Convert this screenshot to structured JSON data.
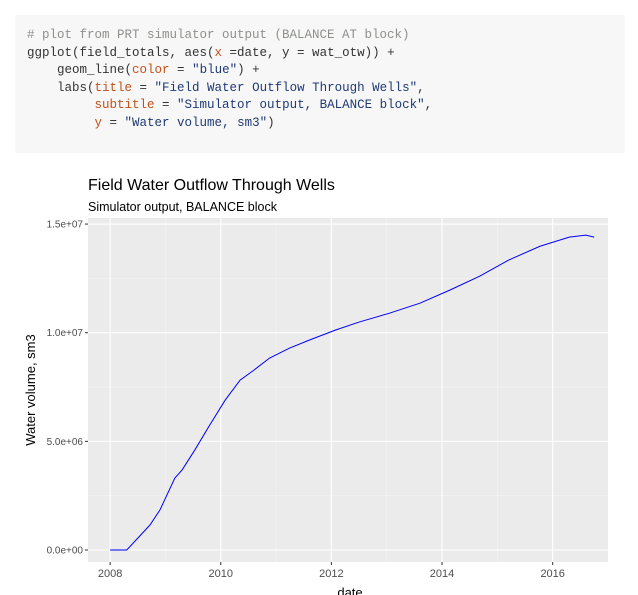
{
  "code": {
    "lines": [
      [
        {
          "text": "# plot from PRT simulator output (BALANCE AT block)",
          "color": "#8e908c"
        }
      ],
      [
        {
          "text": "ggplot(field_totals, aes(",
          "color": "#333333"
        },
        {
          "text": "x",
          "color": "#c4501a"
        },
        {
          "text": " =date, y = wat_otw)) +",
          "color": "#333333"
        }
      ],
      [
        {
          "text": "    geom_line(",
          "color": "#333333"
        },
        {
          "text": "color",
          "color": "#c4501a"
        },
        {
          "text": " = ",
          "color": "#333333"
        },
        {
          "text": "\"blue\"",
          "color": "#1f3a75"
        },
        {
          "text": ") +",
          "color": "#333333"
        }
      ],
      [
        {
          "text": "    labs(",
          "color": "#333333"
        },
        {
          "text": "title",
          "color": "#c4501a"
        },
        {
          "text": " = ",
          "color": "#333333"
        },
        {
          "text": "\"Field Water Outflow Through Wells\"",
          "color": "#1f3a75"
        },
        {
          "text": ",",
          "color": "#333333"
        }
      ],
      [
        {
          "text": "         ",
          "color": "#333333"
        },
        {
          "text": "subtitle",
          "color": "#c4501a"
        },
        {
          "text": " = ",
          "color": "#333333"
        },
        {
          "text": "\"Simulator output, BALANCE block\"",
          "color": "#1f3a75"
        },
        {
          "text": ",",
          "color": "#333333"
        }
      ],
      [
        {
          "text": "         ",
          "color": "#333333"
        },
        {
          "text": "y",
          "color": "#c4501a"
        },
        {
          "text": " = ",
          "color": "#333333"
        },
        {
          "text": "\"Water volume, sm3\"",
          "color": "#1f3a75"
        },
        {
          "text": ")",
          "color": "#333333"
        }
      ]
    ]
  },
  "chart_data": {
    "type": "line",
    "title": "Field Water Outflow Through Wells",
    "subtitle": "Simulator output, BALANCE block",
    "x_label": "date",
    "y_label": "Water volume, sm3",
    "series": [
      {
        "color": "#0000ff",
        "x": [
          2008.0,
          2008.3,
          2008.72,
          2008.9,
          2009.17,
          2009.3,
          2009.53,
          2009.8,
          2010.08,
          2010.35,
          2010.6,
          2010.88,
          2011.24,
          2011.6,
          2012.07,
          2012.5,
          2013.05,
          2013.6,
          2014.14,
          2014.68,
          2015.2,
          2015.77,
          2016.3,
          2016.6,
          2016.75
        ],
        "values": [
          0,
          0,
          1150000,
          1840000,
          3310000,
          3680000,
          4600000,
          5750000,
          6900000,
          7820000,
          8280000,
          8830000,
          9290000,
          9660000,
          10120000,
          10490000,
          10900000,
          11360000,
          11960000,
          12600000,
          13340000,
          13980000,
          14400000,
          14490000,
          14400000
        ]
      }
    ],
    "xlim": [
      2007.6,
      2017.0
    ],
    "xticks": [
      2008,
      2010,
      2012,
      2014,
      2016
    ],
    "ylim": [
      -552000,
      15280000
    ],
    "yticks": [
      {
        "value": 0,
        "label": "0.0e+00"
      },
      {
        "value": 5000000,
        "label": "5.0e+06"
      },
      {
        "value": 10000000,
        "label": "1.0e+07"
      },
      {
        "value": 15000000,
        "label": "1.5e+07"
      }
    ],
    "grid": true
  }
}
